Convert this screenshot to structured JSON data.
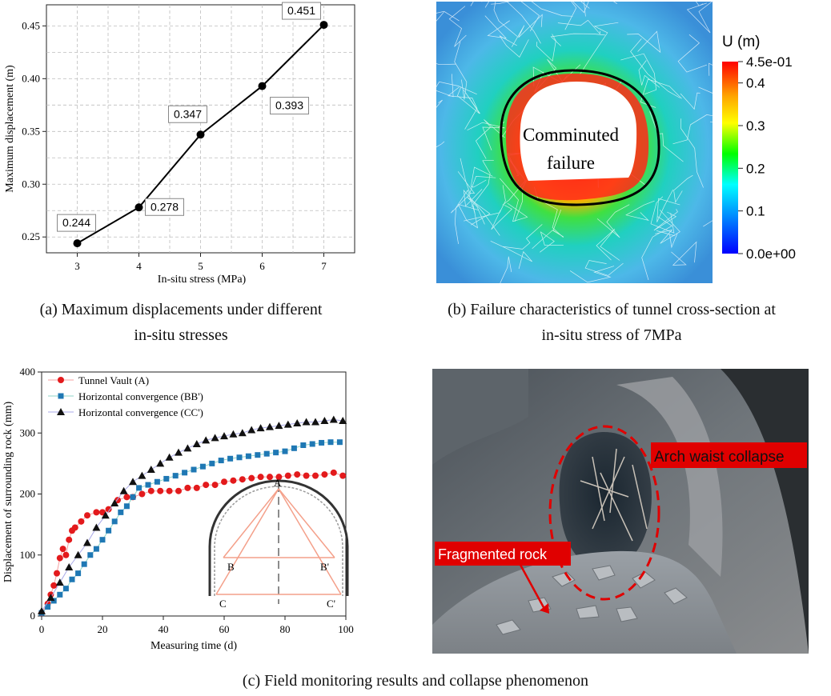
{
  "panel_a": {
    "chart_data": {
      "type": "line",
      "x": [
        3,
        4,
        5,
        6,
        7
      ],
      "values": [
        0.244,
        0.278,
        0.347,
        0.393,
        0.451
      ],
      "data_labels": [
        "0.244",
        "0.278",
        "0.347",
        "0.393",
        "0.451"
      ],
      "xlabel": "In-situ stress (MPa)",
      "ylabel": "Maximum displacement (m)",
      "xlim": [
        2.5,
        7.5
      ],
      "ylim": [
        0.235,
        0.47
      ],
      "xticks": [
        "3",
        "4",
        "5",
        "6",
        "7"
      ],
      "yticks": [
        "0.25",
        "0.30",
        "0.35",
        "0.40",
        "0.45"
      ],
      "grid": true
    },
    "caption_line1": "(a) Maximum displacements under different",
    "caption_line2": "in-situ stresses"
  },
  "panel_b": {
    "colorbar_title": "U (m)",
    "colorbar_ticks": [
      "4.5e-01",
      "0.4",
      "0.3",
      "0.2",
      "0.1",
      "0.0e+00"
    ],
    "colors": [
      "#ff0000",
      "#ffa500",
      "#ffff00",
      "#00ff00",
      "#00ffff",
      "#0080ff",
      "#0000ff"
    ],
    "label_line1": "Comminuted",
    "label_line2": "failure",
    "caption_line1": "(b) Failure characteristics of tunnel cross-section at",
    "caption_line2": "in-situ stress of 7MPa"
  },
  "panel_c": {
    "chart_data": {
      "type": "scatter",
      "xlabel": "Measuring time (d)",
      "ylabel": "Displacement of surrounding rock (mm)",
      "xlim": [
        0,
        100
      ],
      "ylim": [
        0,
        400
      ],
      "xticks": [
        "0",
        "20",
        "40",
        "60",
        "80",
        "100"
      ],
      "yticks": [
        "0",
        "100",
        "200",
        "300",
        "400"
      ],
      "series": [
        {
          "name": "Tunnel Vault (A)",
          "color": "#e31a1c",
          "marker": "circle",
          "x": [
            0,
            2,
            3,
            4,
            5,
            6,
            7,
            8,
            9,
            10,
            11,
            13,
            15,
            18,
            20,
            22,
            25,
            28,
            30,
            33,
            36,
            39,
            42,
            45,
            48,
            51,
            54,
            57,
            60,
            63,
            66,
            69,
            72,
            75,
            78,
            81,
            84,
            87,
            90,
            93,
            96,
            99
          ],
          "y": [
            5,
            20,
            35,
            50,
            70,
            95,
            110,
            100,
            125,
            140,
            145,
            155,
            165,
            170,
            170,
            175,
            190,
            195,
            195,
            200,
            205,
            205,
            205,
            205,
            210,
            210,
            215,
            215,
            220,
            222,
            224,
            226,
            228,
            228,
            228,
            230,
            232,
            230,
            230,
            232,
            235,
            230
          ]
        },
        {
          "name": "Horizontal convergence (BB')",
          "color": "#1f78b4",
          "marker": "square",
          "x": [
            0,
            2,
            4,
            6,
            8,
            10,
            12,
            14,
            16,
            18,
            20,
            22,
            24,
            26,
            28,
            30,
            32,
            35,
            38,
            41,
            44,
            47,
            50,
            53,
            56,
            59,
            62,
            65,
            68,
            71,
            74,
            77,
            80,
            83,
            86,
            89,
            92,
            95,
            98
          ],
          "y": [
            5,
            15,
            25,
            35,
            45,
            60,
            70,
            85,
            100,
            110,
            125,
            140,
            155,
            170,
            180,
            195,
            210,
            215,
            220,
            225,
            230,
            235,
            240,
            245,
            250,
            255,
            258,
            260,
            262,
            264,
            266,
            268,
            270,
            275,
            280,
            282,
            284,
            285,
            285
          ]
        },
        {
          "name": "Horizontal convergence (CC')",
          "color": "#111111",
          "marker": "triangle",
          "x": [
            0,
            3,
            6,
            9,
            12,
            15,
            18,
            21,
            24,
            27,
            30,
            33,
            36,
            39,
            42,
            45,
            48,
            51,
            54,
            57,
            60,
            63,
            66,
            69,
            72,
            75,
            78,
            81,
            84,
            87,
            90,
            93,
            96,
            99
          ],
          "y": [
            8,
            30,
            55,
            80,
            100,
            120,
            145,
            165,
            185,
            205,
            220,
            230,
            240,
            250,
            260,
            268,
            275,
            282,
            288,
            292,
            295,
            298,
            300,
            305,
            308,
            310,
            312,
            314,
            316,
            318,
            318,
            320,
            322,
            320
          ]
        }
      ]
    },
    "diagram_labels": {
      "a": "A",
      "b": "B",
      "b2": "B'",
      "c": "C",
      "c2": "C'"
    },
    "photo_label_1": "Arch waist collapse",
    "photo_label_2": "Fragmented rock",
    "caption": "(c) Field monitoring results and collapse phenomenon"
  }
}
